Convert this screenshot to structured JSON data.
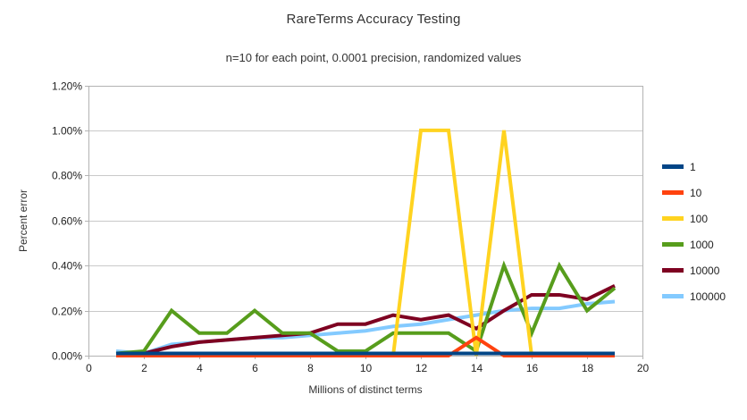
{
  "chart_data": {
    "type": "line",
    "title": "RareTerms Accuracy Testing",
    "subtitle": "n=10 for each point, 0.0001 precision, randomized values",
    "xlabel": "Millions of distinct terms",
    "ylabel": "Percent error",
    "xlim": [
      0,
      20
    ],
    "ylim": [
      0,
      1.2
    ],
    "y_unit": "percent",
    "x_ticks": [
      0,
      2,
      4,
      6,
      8,
      10,
      12,
      14,
      16,
      18,
      20
    ],
    "y_ticks": [
      0.0,
      0.2,
      0.4,
      0.6,
      0.8,
      1.0,
      1.2
    ],
    "y_tick_labels": [
      "0.00%",
      "0.20%",
      "0.40%",
      "0.60%",
      "0.80%",
      "1.00%",
      "1.20%"
    ],
    "grid": "horizontal",
    "legend_position": "right",
    "x": [
      1,
      2,
      3,
      4,
      5,
      6,
      7,
      8,
      9,
      10,
      11,
      12,
      13,
      14,
      15,
      16,
      17,
      18,
      19
    ],
    "series": [
      {
        "name": "1",
        "color": "#004586",
        "values": [
          0.01,
          0.01,
          0.01,
          0.01,
          0.01,
          0.01,
          0.01,
          0.01,
          0.01,
          0.01,
          0.01,
          0.01,
          0.01,
          0.01,
          0.01,
          0.01,
          0.01,
          0.01,
          0.01
        ]
      },
      {
        "name": "10",
        "color": "#FF420E",
        "values": [
          0.0,
          0.0,
          0.0,
          0.0,
          0.0,
          0.0,
          0.0,
          0.0,
          0.0,
          0.0,
          0.0,
          0.0,
          0.0,
          0.08,
          0.0,
          0.0,
          0.0,
          0.0,
          0.0
        ]
      },
      {
        "name": "100",
        "color": "#FFD320",
        "values": [
          0.0,
          0.0,
          0.0,
          0.0,
          0.0,
          0.0,
          0.0,
          0.0,
          0.0,
          0.0,
          0.0,
          1.0,
          1.0,
          0.0,
          1.0,
          0.0,
          0.0,
          0.0,
          0.0
        ]
      },
      {
        "name": "1000",
        "color": "#579D1C",
        "values": [
          0.01,
          0.02,
          0.2,
          0.1,
          0.1,
          0.2,
          0.1,
          0.1,
          0.02,
          0.02,
          0.1,
          0.1,
          0.1,
          0.02,
          0.4,
          0.1,
          0.4,
          0.2,
          0.3
        ]
      },
      {
        "name": "10000",
        "color": "#7E0021",
        "values": [
          0.01,
          0.01,
          0.04,
          0.06,
          0.07,
          0.08,
          0.09,
          0.1,
          0.14,
          0.14,
          0.18,
          0.16,
          0.18,
          0.12,
          0.2,
          0.27,
          0.27,
          0.25,
          0.31
        ]
      },
      {
        "name": "100000",
        "color": "#83CAFF",
        "values": [
          0.02,
          0.01,
          0.05,
          0.06,
          0.07,
          0.08,
          0.08,
          0.09,
          0.1,
          0.11,
          0.13,
          0.14,
          0.16,
          0.18,
          0.2,
          0.21,
          0.21,
          0.23,
          0.24
        ]
      }
    ],
    "colors": {
      "grid": "#c9c9c9",
      "axis": "#b3b3b3",
      "text": "#333333"
    }
  }
}
